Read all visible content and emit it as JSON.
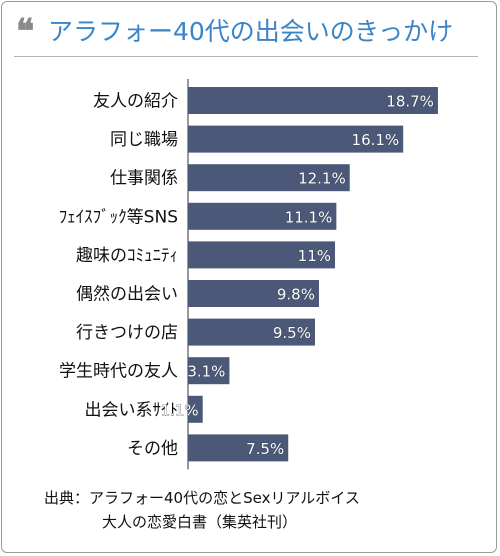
{
  "title": "アラフォー40代の出会いのきっかけ",
  "quote_icon": "quote-mark-icon",
  "colors": {
    "bar": "#4b5878",
    "title": "#3a84c7",
    "label": "#ffffff"
  },
  "source": {
    "line1": "出典：アラフォー40代の恋とSexリアルボイス",
    "line2": "大人の恋愛白書（集英社刊）"
  },
  "chart_data": {
    "type": "bar",
    "orientation": "horizontal",
    "categories": [
      "友人の紹介",
      "同じ職場",
      "仕事関係",
      "ﾌｪｲｽﾌﾞｯｸ等SNS",
      "趣味のｺﾐｭﾆﾃｨ",
      "偶然の出会い",
      "行きつけの店",
      "学生時代の友人",
      "出会い系ｻｲﾄ",
      "その他"
    ],
    "values": [
      18.7,
      16.1,
      12.1,
      11.1,
      11,
      9.8,
      9.5,
      3.1,
      1.1,
      7.5
    ],
    "value_labels": [
      "18.7%",
      "16.1%",
      "12.1%",
      "11.1%",
      "11%",
      "9.8%",
      "9.5%",
      "3.1%",
      "1.1%",
      "7.5%"
    ],
    "xlim": [
      0,
      20.5
    ],
    "grid": false,
    "legend": "none"
  }
}
